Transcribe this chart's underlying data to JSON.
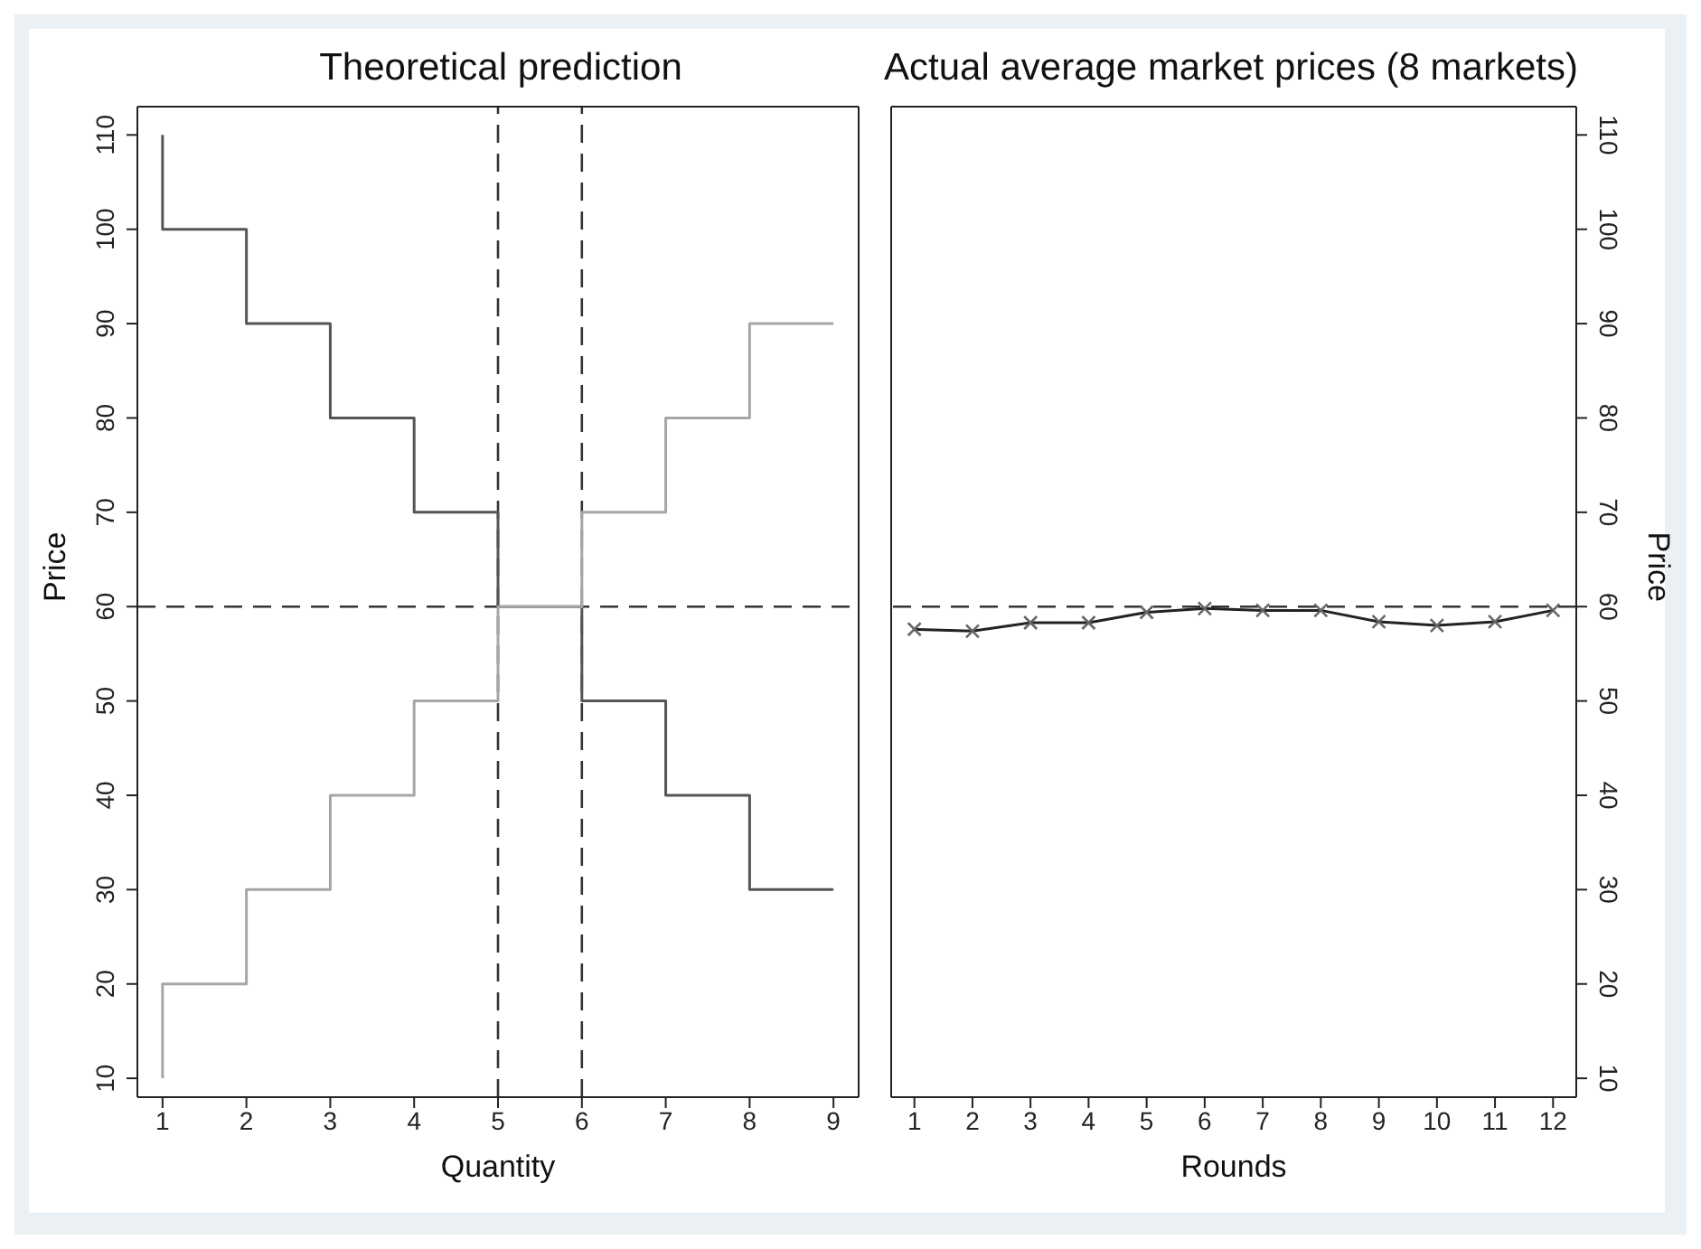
{
  "chart_data": [
    {
      "type": "step",
      "title": "Theoretical prediction",
      "xlabel": "Quantity",
      "ylabel": "Price",
      "xlim": [
        0.7,
        9.3
      ],
      "xticks": [
        1,
        2,
        3,
        4,
        5,
        6,
        7,
        8,
        9
      ],
      "ylim": [
        8,
        113
      ],
      "yticks": [
        10,
        20,
        30,
        40,
        50,
        60,
        70,
        80,
        90,
        100,
        110
      ],
      "legend": false,
      "marker": "none",
      "line_style": "solid",
      "series": [
        {
          "color": "#555555",
          "x": [
            1,
            1,
            2,
            3,
            4,
            5,
            6,
            7,
            8,
            9
          ],
          "values": [
            110,
            100,
            90,
            80,
            70,
            60,
            50,
            40,
            30,
            30
          ]
        },
        {
          "color": "#a6a6a6",
          "x": [
            1,
            1,
            2,
            3,
            4,
            5,
            6,
            7,
            8,
            9
          ],
          "values": [
            10,
            20,
            30,
            40,
            50,
            60,
            70,
            80,
            90,
            90
          ]
        }
      ],
      "ref_lines": [
        {
          "axis": "x",
          "value": 5,
          "color": "#333333",
          "line_style": "dashed"
        },
        {
          "axis": "x",
          "value": 6,
          "color": "#333333",
          "line_style": "dashed"
        },
        {
          "axis": "y",
          "value": 60,
          "color": "#333333",
          "line_style": "dashed"
        }
      ]
    },
    {
      "type": "line",
      "title": "Actual average market prices (8 markets)",
      "xlabel": "Rounds",
      "y2label": "Price",
      "x": [
        1,
        2,
        3,
        4,
        5,
        6,
        7,
        8,
        9,
        10,
        11,
        12
      ],
      "xlim": [
        0.6,
        12.4
      ],
      "xticks": [
        1,
        2,
        3,
        4,
        5,
        6,
        7,
        8,
        9,
        10,
        11,
        12
      ],
      "y2lim": [
        8,
        113
      ],
      "y2ticks": [
        10,
        20,
        30,
        40,
        50,
        60,
        70,
        80,
        90,
        100,
        110
      ],
      "legend": false,
      "marker": "cross",
      "line_style": "solid",
      "series": [
        {
          "color": "#222222",
          "axis": "y2",
          "values": [
            57.6,
            57.4,
            58.3,
            58.3,
            59.4,
            59.8,
            59.6,
            59.6,
            58.4,
            58.0,
            58.4,
            59.6
          ]
        }
      ],
      "ref_lines": [
        {
          "axis": "y2",
          "value": 60,
          "color": "#333333",
          "line_style": "dashed"
        }
      ]
    }
  ]
}
